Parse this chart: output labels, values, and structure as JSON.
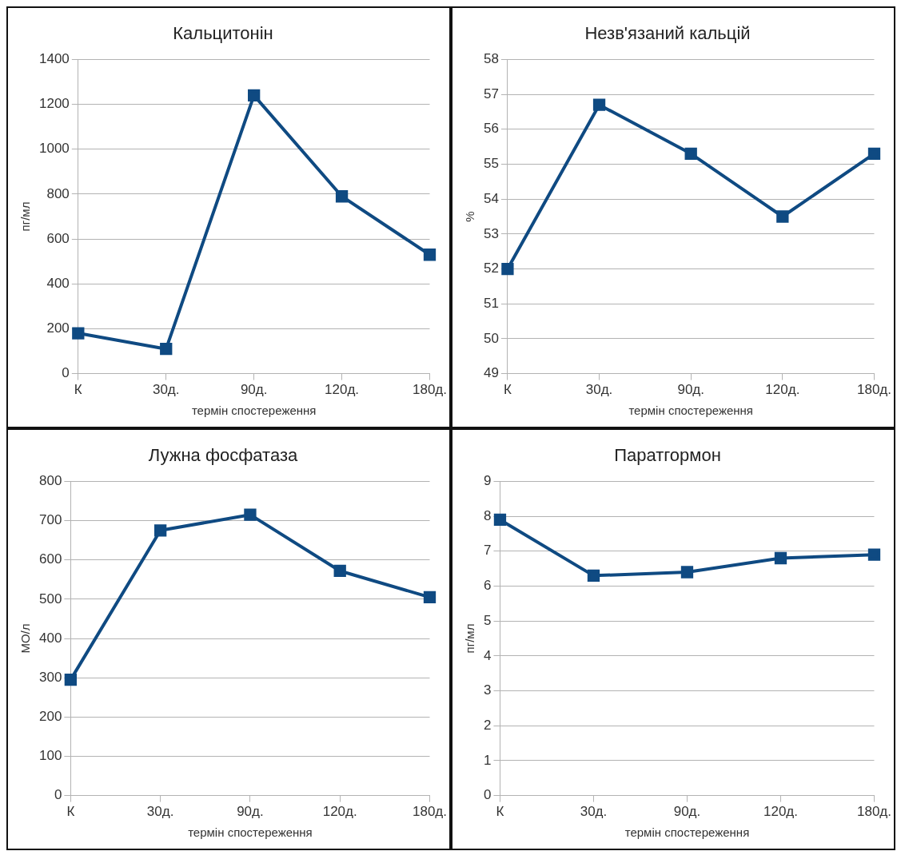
{
  "chart_data": [
    {
      "type": "line",
      "title": "Кальцитонін",
      "xlabel": "термін спостереження",
      "ylabel": "пг/мл",
      "categories": [
        "К",
        "30д.",
        "90д.",
        "120д.",
        "180д."
      ],
      "series": [
        {
          "color": "#0f4a82",
          "values": [
            180,
            110,
            1240,
            790,
            530
          ]
        }
      ],
      "ylim": [
        0,
        1400
      ],
      "yticks": [
        0,
        200,
        400,
        600,
        800,
        1000,
        1200,
        1400
      ],
      "grid": "y",
      "legend": false,
      "marker": "square",
      "line_style": "solid"
    },
    {
      "type": "line",
      "title": "Незв'язаний кальцій",
      "xlabel": "термін спостереження",
      "ylabel": "%",
      "categories": [
        "К",
        "30д.",
        "90д.",
        "120д.",
        "180д."
      ],
      "series": [
        {
          "color": "#0f4a82",
          "values": [
            52,
            56.7,
            55.3,
            53.5,
            55.3
          ]
        }
      ],
      "ylim": [
        49,
        58
      ],
      "yticks": [
        49,
        50,
        51,
        52,
        53,
        54,
        55,
        56,
        57,
        58
      ],
      "grid": "y",
      "legend": false,
      "marker": "square",
      "line_style": "solid"
    },
    {
      "type": "line",
      "title": "Лужна фосфатаза",
      "xlabel": "термін спостереження",
      "ylabel": "МО/л",
      "categories": [
        "К",
        "30д.",
        "90д.",
        "120д.",
        "180д."
      ],
      "series": [
        {
          "color": "#0f4a82",
          "values": [
            295,
            675,
            715,
            572,
            505
          ]
        }
      ],
      "ylim": [
        0,
        800
      ],
      "yticks": [
        0,
        100,
        200,
        300,
        400,
        500,
        600,
        700,
        800
      ],
      "grid": "y",
      "legend": false,
      "marker": "square",
      "line_style": "solid"
    },
    {
      "type": "line",
      "title": "Паратгормон",
      "xlabel": "термін спостереження",
      "ylabel": "пг/мл",
      "categories": [
        "К",
        "30д.",
        "90д.",
        "120д.",
        "180д."
      ],
      "series": [
        {
          "color": "#0f4a82",
          "values": [
            7.9,
            6.3,
            6.4,
            6.8,
            6.9
          ]
        }
      ],
      "ylim": [
        0,
        9
      ],
      "yticks": [
        0,
        1,
        2,
        3,
        4,
        5,
        6,
        7,
        8,
        9
      ],
      "grid": "y",
      "legend": false,
      "marker": "square",
      "line_style": "solid"
    }
  ]
}
